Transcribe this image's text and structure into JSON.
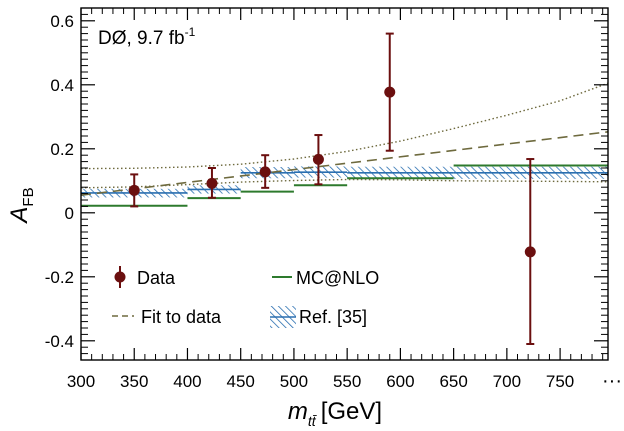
{
  "chart_data": {
    "type": "scatter",
    "experiment_label": "DØ, 9.7 fb",
    "experiment_label_sup": "-1",
    "xlabel": "m",
    "xlabel_sub": "tt̄",
    "xlabel_unit": "[GeV]",
    "ylabel": "A",
    "ylabel_sub": "FB",
    "x_tick_labels": [
      "300",
      "350",
      "400",
      "450",
      "500",
      "550",
      "600",
      "650",
      "700",
      "750"
    ],
    "x_break_label": "···",
    "y_tick_labels": [
      "0.6",
      "0.4",
      "0.2",
      "0",
      "-0.2",
      "-0.4"
    ],
    "xlim": [
      300,
      795
    ],
    "ylim": [
      -0.46,
      0.64
    ],
    "series": [
      {
        "name": "Data",
        "style": "points-with-errors",
        "color": "#6b0f0f",
        "points": [
          {
            "x": 350,
            "y": 0.07,
            "err_up": 0.05,
            "err_down": 0.05
          },
          {
            "x": 423,
            "y": 0.092,
            "err_up": 0.048,
            "err_down": 0.045
          },
          {
            "x": 473,
            "y": 0.128,
            "err_up": 0.052,
            "err_down": 0.05
          },
          {
            "x": 523,
            "y": 0.167,
            "err_up": 0.076,
            "err_down": 0.078
          },
          {
            "x": 590,
            "y": 0.377,
            "err_up": 0.183,
            "err_down": 0.183
          },
          {
            "x": 722,
            "y": -0.122,
            "err_up": 0.29,
            "err_down": 0.288
          }
        ]
      },
      {
        "name": "MC@NLO",
        "style": "step",
        "color": "#2d7a2d",
        "bins": [
          {
            "x0": 300,
            "x1": 400,
            "y": 0.022
          },
          {
            "x0": 400,
            "x1": 450,
            "y": 0.046
          },
          {
            "x0": 450,
            "x1": 500,
            "y": 0.066
          },
          {
            "x0": 500,
            "x1": 550,
            "y": 0.086
          },
          {
            "x0": 550,
            "x1": 650,
            "y": 0.108
          },
          {
            "x0": 650,
            "x1": 795,
            "y": 0.148
          }
        ]
      },
      {
        "name": "Fit to data",
        "style": "dashed-line",
        "color": "#6e6a3e",
        "intercept_at_300": 0.055,
        "slope_per_gev": 0.0004
      },
      {
        "name": "Fit to data (uncertainty)",
        "style": "dotted-band",
        "color": "#6e6a3e",
        "upper": [
          {
            "x": 300,
            "y": 0.138
          },
          {
            "x": 350,
            "y": 0.139
          },
          {
            "x": 400,
            "y": 0.143
          },
          {
            "x": 450,
            "y": 0.152
          },
          {
            "x": 500,
            "y": 0.168
          },
          {
            "x": 550,
            "y": 0.192
          },
          {
            "x": 600,
            "y": 0.224
          },
          {
            "x": 650,
            "y": 0.263
          },
          {
            "x": 700,
            "y": 0.305
          },
          {
            "x": 750,
            "y": 0.35
          },
          {
            "x": 795,
            "y": 0.405
          }
        ],
        "lower": [
          {
            "x": 300,
            "y": 0.078
          },
          {
            "x": 350,
            "y": 0.081
          },
          {
            "x": 400,
            "y": 0.088
          },
          {
            "x": 450,
            "y": 0.096
          },
          {
            "x": 500,
            "y": 0.101
          },
          {
            "x": 550,
            "y": 0.104
          },
          {
            "x": 600,
            "y": 0.103
          },
          {
            "x": 650,
            "y": 0.1
          },
          {
            "x": 700,
            "y": 0.099
          },
          {
            "x": 750,
            "y": 0.098
          },
          {
            "x": 795,
            "y": 0.097
          }
        ]
      },
      {
        "name": "Ref. [35]",
        "style": "hatched-band",
        "color": "#2a6fb0",
        "bins": [
          {
            "x0": 300,
            "x1": 400,
            "y": 0.062,
            "lo": 0.048,
            "hi": 0.075
          },
          {
            "x0": 400,
            "x1": 450,
            "y": 0.073,
            "lo": 0.06,
            "hi": 0.086
          },
          {
            "x0": 450,
            "x1": 500,
            "y": 0.125,
            "lo": 0.108,
            "hi": 0.143
          },
          {
            "x0": 500,
            "x1": 550,
            "y": 0.127,
            "lo": 0.11,
            "hi": 0.145
          },
          {
            "x0": 550,
            "x1": 650,
            "y": 0.125,
            "lo": 0.106,
            "hi": 0.144
          },
          {
            "x0": 650,
            "x1": 795,
            "y": 0.125,
            "lo": 0.106,
            "hi": 0.144
          }
        ]
      }
    ],
    "legend": {
      "placement": "bottom-left",
      "entries": [
        {
          "label": "Data"
        },
        {
          "label": "MC@NLO"
        },
        {
          "label": "Fit to data"
        },
        {
          "label": "Ref. [35]"
        }
      ]
    }
  }
}
